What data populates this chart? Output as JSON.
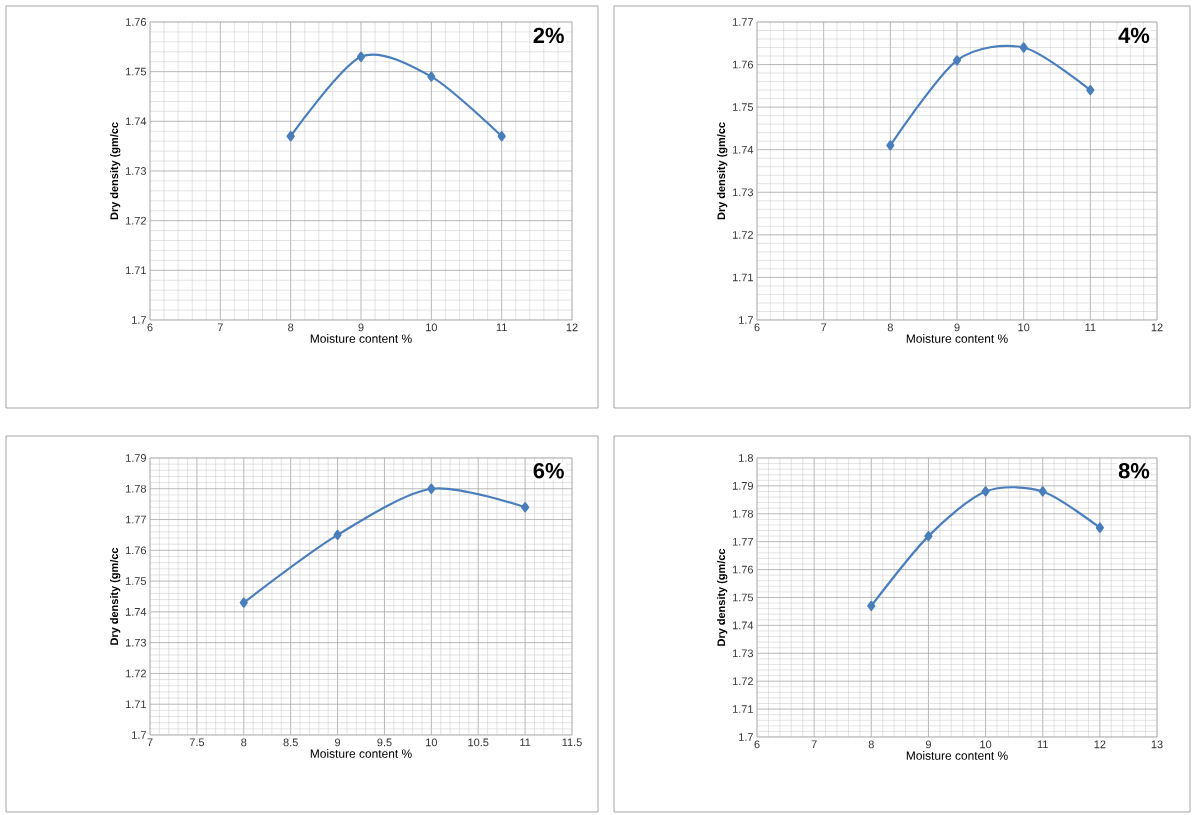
{
  "chart_data": [
    {
      "type": "line",
      "title": "2%",
      "xlabel": "Moisture content %",
      "ylabel": "Dry density (gm/cc",
      "x": [
        8,
        9,
        10,
        11
      ],
      "values": [
        1.737,
        1.753,
        1.749,
        1.737
      ],
      "color": "#4a7ebb",
      "marker": "diamond",
      "line_style": "solid",
      "grid": true,
      "xlim": [
        6,
        12
      ],
      "xticks": [
        6,
        7,
        8,
        9,
        10,
        11,
        12
      ],
      "ylim": [
        1.7,
        1.76
      ],
      "yticks": [
        1.7,
        1.71,
        1.72,
        1.73,
        1.74,
        1.75,
        1.76
      ]
    },
    {
      "type": "line",
      "title": "4%",
      "xlabel": "Moisture content %",
      "ylabel": "Dry density (gm/cc",
      "x": [
        8,
        9,
        10,
        11
      ],
      "values": [
        1.741,
        1.761,
        1.764,
        1.754
      ],
      "color": "#4a7ebb",
      "marker": "diamond",
      "line_style": "solid",
      "grid": true,
      "xlim": [
        6,
        12
      ],
      "xticks": [
        6,
        7,
        8,
        9,
        10,
        11,
        12
      ],
      "ylim": [
        1.7,
        1.77
      ],
      "yticks": [
        1.7,
        1.71,
        1.72,
        1.73,
        1.74,
        1.75,
        1.76,
        1.77
      ]
    },
    {
      "type": "line",
      "title": "6%",
      "xlabel": "Moisture content %",
      "ylabel": "Dry density (gm/cc",
      "x": [
        8,
        9,
        10,
        11
      ],
      "values": [
        1.743,
        1.765,
        1.78,
        1.774
      ],
      "color": "#4a7ebb",
      "marker": "diamond",
      "line_style": "solid",
      "grid": true,
      "xlim": [
        7,
        11.5
      ],
      "xticks": [
        7,
        7.5,
        8,
        8.5,
        9,
        9.5,
        10,
        10.5,
        11,
        11.5
      ],
      "ylim": [
        1.7,
        1.79
      ],
      "yticks": [
        1.7,
        1.71,
        1.72,
        1.73,
        1.74,
        1.75,
        1.76,
        1.77,
        1.78,
        1.79
      ]
    },
    {
      "type": "line",
      "title": "8%",
      "xlabel": "Moisture content %",
      "ylabel": "Dry density (gm/cc",
      "x": [
        8,
        9,
        10,
        11,
        12
      ],
      "values": [
        1.747,
        1.772,
        1.788,
        1.788,
        1.775
      ],
      "color": "#4a7ebb",
      "marker": "diamond",
      "line_style": "solid",
      "grid": true,
      "xlim": [
        6,
        13
      ],
      "xticks": [
        6,
        7,
        8,
        9,
        10,
        11,
        12,
        13
      ],
      "ylim": [
        1.7,
        1.8
      ],
      "yticks": [
        1.7,
        1.71,
        1.72,
        1.73,
        1.74,
        1.75,
        1.76,
        1.77,
        1.78,
        1.79,
        1.8
      ]
    }
  ]
}
